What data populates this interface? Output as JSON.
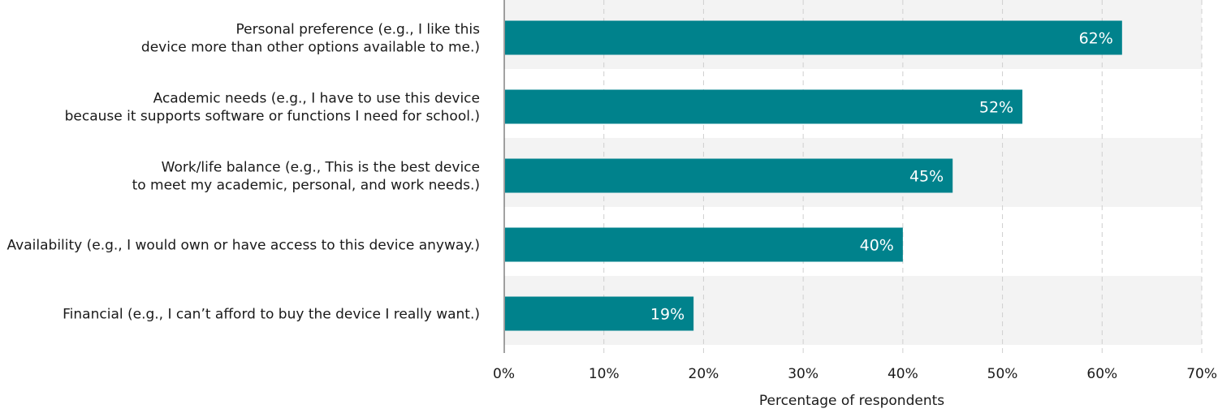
{
  "chart_data": {
    "type": "bar",
    "orientation": "horizontal",
    "title": "",
    "xlabel": "Percentage of respondents",
    "ylabel": "",
    "xlim": [
      0,
      70
    ],
    "x_ticks": [
      0,
      10,
      20,
      30,
      40,
      50,
      60,
      70
    ],
    "tick_suffix": "%",
    "grid": "vertical dashed",
    "bar_color": "#00828c",
    "band_color": "#f3f3f3",
    "categories": [
      [
        "Personal preference (e.g., I like this",
        "device more than other options available to me.)"
      ],
      [
        "Academic needs (e.g., I have to use this device",
        "because it supports software or functions I need for school.)"
      ],
      [
        "Work/life balance (e.g., This is the best device",
        "to meet my academic, personal, and work needs.)"
      ],
      [
        "Availability (e.g., I would own or have access to this device anyway.)"
      ],
      [
        "Financial (e.g., I can’t afford to buy the device I really want.)"
      ]
    ],
    "values": [
      62,
      52,
      45,
      40,
      19
    ],
    "value_labels": [
      "62%",
      "52%",
      "45%",
      "40%",
      "19%"
    ]
  }
}
